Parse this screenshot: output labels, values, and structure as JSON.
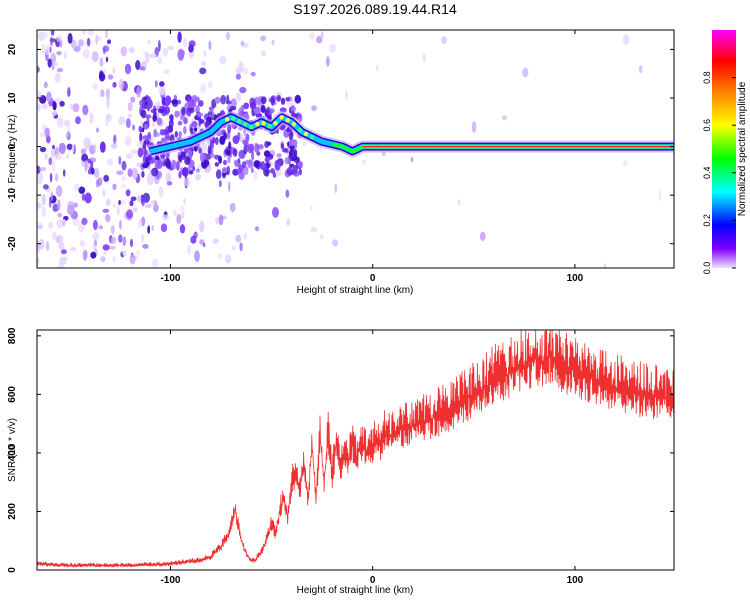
{
  "figure": {
    "title": "S197.2026.089.19.44.R14"
  },
  "chart_data": [
    {
      "type": "heatmap",
      "title": "S197.2026.089.19.44.R14",
      "xlabel": "Height of straight line (km)",
      "ylabel": "Frequency (Hz)",
      "xlim": [
        -166,
        149
      ],
      "ylim": [
        -25,
        24
      ],
      "xticks": [
        -100,
        0,
        100
      ],
      "xtick_labels": [
        "-100",
        "0",
        "100"
      ],
      "yticks": [
        -20,
        -10,
        0,
        10,
        20
      ],
      "ytick_labels": [
        "-20",
        "-10",
        "0",
        "10",
        "20"
      ],
      "colorbar": {
        "label": "Normalized spectral amplitude",
        "range": [
          0,
          1
        ],
        "ticks": [
          0.0,
          0.2,
          0.4,
          0.6,
          0.8
        ],
        "tick_labels": [
          "0.0",
          "0.2",
          "0.4",
          "0.6",
          "0.8"
        ],
        "colormap": [
          "#f0e0ff",
          "#8000ff",
          "#0000ff",
          "#00ffff",
          "#00ff00",
          "#ffff00",
          "#ff8000",
          "#ff0000",
          "#ff00ff"
        ]
      },
      "ridge": {
        "name": "dominant frequency",
        "x": [
          -110,
          -100,
          -90,
          -80,
          -75,
          -70,
          -65,
          -60,
          -55,
          -50,
          -45,
          -40,
          -35,
          -30,
          -25,
          -20,
          -15,
          -10,
          -5,
          0,
          10,
          50,
          100,
          149
        ],
        "y": [
          -1,
          0,
          1,
          3,
          5,
          6,
          5,
          4,
          5,
          4,
          6,
          5,
          3,
          2,
          1,
          0.5,
          0,
          -1,
          0,
          0,
          0,
          0,
          0,
          0
        ]
      }
    },
    {
      "type": "line",
      "xlabel": "Height of straight line (km)",
      "ylabel": "SNR (10 * v/v)",
      "xlim": [
        -166,
        149
      ],
      "ylim": [
        0,
        820
      ],
      "xticks": [
        -100,
        0,
        100
      ],
      "xtick_labels": [
        "-100",
        "0",
        "100"
      ],
      "yticks": [
        0,
        200,
        400,
        600,
        800
      ],
      "ytick_labels": [
        "0",
        "200",
        "400",
        "600",
        "800"
      ],
      "series": [
        {
          "name": "SNR",
          "color": "#ee3030",
          "x": [
            -166,
            -160,
            -150,
            -140,
            -130,
            -120,
            -110,
            -100,
            -95,
            -90,
            -85,
            -80,
            -78,
            -75,
            -72,
            -70,
            -68,
            -66,
            -64,
            -62,
            -60,
            -58,
            -55,
            -52,
            -50,
            -48,
            -46,
            -44,
            -42,
            -40,
            -38,
            -36,
            -34,
            -32,
            -30,
            -28,
            -26,
            -24,
            -22,
            -20,
            -18,
            -16,
            -14,
            -12,
            -10,
            -8,
            -6,
            -4,
            -2,
            0,
            2,
            4,
            6,
            8,
            10,
            14,
            18,
            22,
            26,
            30,
            34,
            38,
            42,
            46,
            50,
            55,
            60,
            65,
            70,
            75,
            80,
            84,
            88,
            92,
            96,
            100,
            104,
            108,
            112,
            116,
            120,
            124,
            128,
            132,
            136,
            140,
            145,
            149
          ],
          "y": [
            22,
            18,
            15,
            17,
            14,
            16,
            18,
            20,
            25,
            30,
            32,
            45,
            60,
            80,
            110,
            150,
            210,
            130,
            80,
            50,
            30,
            35,
            60,
            110,
            160,
            120,
            200,
            250,
            180,
            300,
            320,
            280,
            360,
            240,
            430,
            250,
            450,
            300,
            460,
            320,
            440,
            340,
            400,
            370,
            430,
            380,
            420,
            410,
            400,
            420,
            450,
            430,
            470,
            455,
            460,
            480,
            490,
            500,
            510,
            520,
            530,
            545,
            560,
            580,
            600,
            620,
            650,
            660,
            680,
            700,
            720,
            710,
            730,
            705,
            690,
            680,
            665,
            655,
            640,
            630,
            620,
            615,
            610,
            600,
            595,
            590,
            585,
            590
          ]
        }
      ]
    }
  ]
}
